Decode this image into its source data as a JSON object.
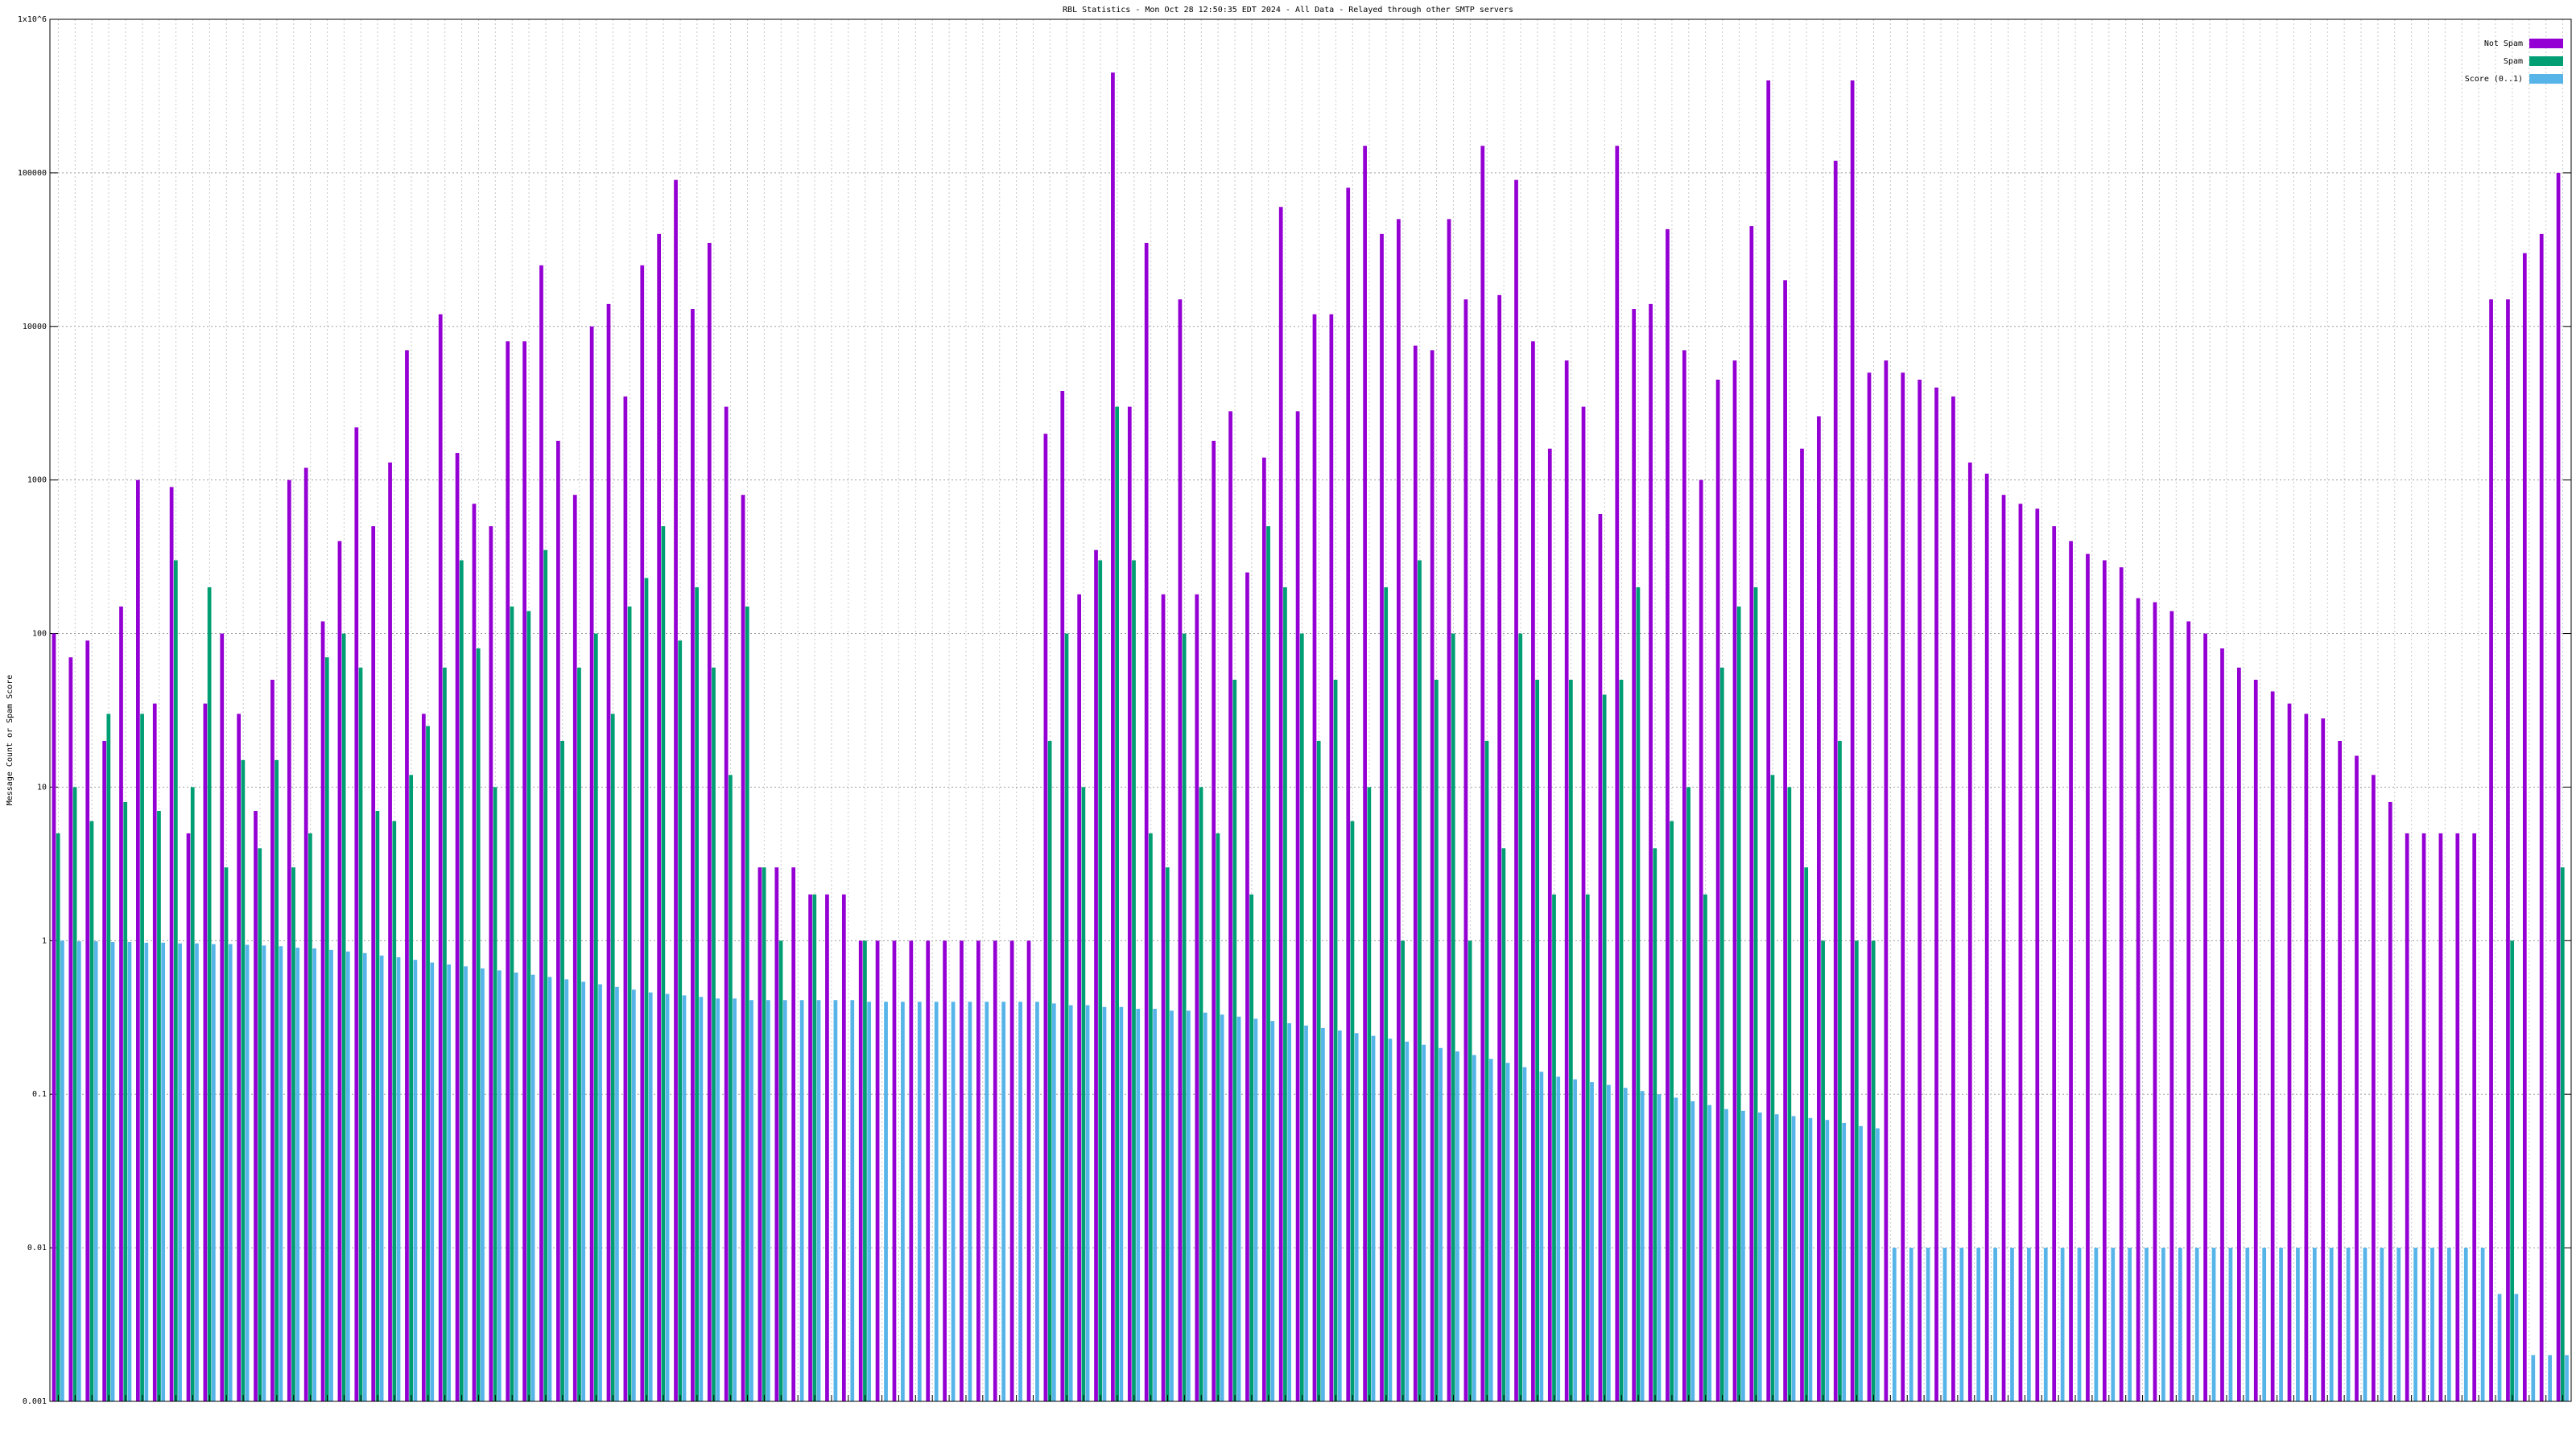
{
  "chart_data": {
    "type": "bar",
    "title": "RBL Statistics - Mon Oct 28 12:50:35 EDT 2024 - All Data - Relayed through other SMTP servers",
    "y_label": "Message Count or Spam Score",
    "log_scale": true,
    "grid": true,
    "legend": "top right",
    "ylim": [
      0.001,
      1000000
    ],
    "yticks": [
      0.001,
      0.01,
      0.1,
      1,
      10,
      100,
      1000,
      10000,
      100000,
      {
        "value": 1000000,
        "label": "1x10^6"
      }
    ],
    "categories": [
      null,
      null,
      null,
      null,
      null,
      null,
      null,
      null,
      null,
      null,
      null,
      null,
      null,
      null,
      null,
      null,
      null,
      null,
      null,
      null,
      null,
      null,
      null,
      null,
      null,
      null,
      null,
      null,
      null,
      null,
      null,
      null,
      null,
      null,
      null,
      null,
      null,
      null,
      null,
      null,
      null,
      null,
      null,
      null,
      null,
      null,
      null,
      null,
      null,
      null,
      null,
      null,
      null,
      null,
      null,
      null,
      null,
      null,
      null,
      null,
      null,
      null,
      null,
      null,
      null,
      null,
      null,
      null,
      null,
      null,
      null,
      null,
      null,
      null,
      null,
      null,
      null,
      null,
      null,
      null,
      null,
      null,
      null,
      null,
      null,
      null,
      null,
      null,
      null,
      null,
      null,
      null,
      null,
      null,
      null,
      null,
      null,
      null,
      null,
      null,
      null,
      null,
      null,
      null,
      null,
      null,
      null,
      null,
      null,
      null,
      null,
      null,
      null,
      null,
      null,
      null,
      null,
      null,
      null,
      null,
      null,
      null,
      null,
      null,
      null,
      null,
      null,
      null,
      null,
      null,
      null,
      null,
      null,
      null,
      null,
      null,
      null,
      null,
      null,
      null,
      null,
      null,
      null,
      null,
      null,
      null,
      null,
      null,
      null,
      null
    ],
    "series": [
      {
        "name": "Not Spam",
        "color": "#9400d3",
        "values": [
          100,
          70,
          90,
          20,
          150,
          1000,
          35,
          900,
          5,
          35,
          100,
          30,
          7,
          50,
          1000,
          1200,
          120,
          400,
          2200,
          500,
          1300,
          7000,
          30,
          12000,
          1500,
          700,
          500,
          8000,
          8000,
          25000,
          1800,
          800,
          10000,
          14000,
          3500,
          25000,
          40000,
          90000,
          13000,
          35000,
          3000,
          800,
          3,
          3,
          3,
          2,
          2,
          2,
          1,
          1,
          1,
          1,
          1,
          1,
          1,
          1,
          1,
          1,
          1,
          2000,
          3800,
          180,
          350,
          450000,
          3000,
          35000,
          180,
          15000,
          180,
          1800,
          2800,
          250,
          1400,
          60000,
          2800,
          12000,
          12000,
          80000,
          150000,
          40000,
          50000,
          7500,
          7000,
          50000,
          15000,
          150000,
          16000,
          90000,
          8000,
          1600,
          6000,
          3000,
          600,
          150000,
          13000,
          14000,
          43000,
          7000,
          1000,
          4500,
          6000,
          45000,
          400000,
          20000,
          1600,
          2600,
          120000,
          400000,
          5000,
          6000,
          5000,
          4500,
          4000,
          3500,
          1300,
          1100,
          800,
          700,
          650,
          500,
          400,
          330,
          300,
          270,
          170,
          160,
          140,
          120,
          100,
          80,
          60,
          50,
          42,
          35,
          30,
          28,
          20,
          16,
          12,
          8,
          5,
          5,
          5,
          5,
          5,
          15000,
          15000,
          30000,
          40000,
          100000
        ]
      },
      {
        "name": "Spam",
        "color": "#009e73",
        "values": [
          5,
          10,
          6,
          30,
          8,
          30,
          7,
          300,
          10,
          200,
          3,
          15,
          4,
          15,
          3,
          5,
          70,
          100,
          60,
          7,
          6,
          12,
          25,
          60,
          300,
          80,
          10,
          150,
          140,
          350,
          20,
          60,
          100,
          30,
          150,
          230,
          500,
          90,
          200,
          60,
          12,
          150,
          3,
          1,
          null,
          2,
          null,
          null,
          1,
          null,
          null,
          null,
          null,
          null,
          null,
          null,
          null,
          null,
          null,
          20,
          100,
          10,
          300,
          3000,
          300,
          5,
          3,
          100,
          10,
          5,
          50,
          2,
          500,
          200,
          100,
          20,
          50,
          6,
          10,
          200,
          1,
          300,
          50,
          100,
          1,
          20,
          4,
          100,
          50,
          2,
          50,
          2,
          40,
          50,
          200,
          4,
          6,
          10,
          2,
          60,
          150,
          200,
          12,
          10,
          3,
          1,
          20,
          1,
          1,
          null,
          null,
          null,
          null,
          null,
          null,
          null,
          null,
          null,
          null,
          null,
          null,
          null,
          null,
          null,
          null,
          null,
          null,
          null,
          null,
          null,
          null,
          null,
          null,
          null,
          null,
          null,
          null,
          null,
          null,
          null,
          null,
          null,
          null,
          null,
          null,
          null,
          1,
          null,
          null,
          3
        ]
      },
      {
        "name": "Score (0..1)",
        "color": "#56b4e9",
        "values": [
          1,
          0.99,
          0.99,
          0.98,
          0.98,
          0.97,
          0.97,
          0.96,
          0.96,
          0.95,
          0.95,
          0.94,
          0.93,
          0.92,
          0.9,
          0.89,
          0.87,
          0.85,
          0.83,
          0.8,
          0.78,
          0.75,
          0.72,
          0.7,
          0.68,
          0.66,
          0.64,
          0.62,
          0.6,
          0.58,
          0.56,
          0.54,
          0.52,
          0.5,
          0.48,
          0.46,
          0.45,
          0.44,
          0.43,
          0.42,
          0.42,
          0.41,
          0.41,
          0.41,
          0.41,
          0.41,
          0.41,
          0.41,
          0.4,
          0.4,
          0.4,
          0.4,
          0.4,
          0.4,
          0.4,
          0.4,
          0.4,
          0.4,
          0.4,
          0.39,
          0.38,
          0.38,
          0.37,
          0.37,
          0.36,
          0.36,
          0.35,
          0.35,
          0.34,
          0.33,
          0.32,
          0.31,
          0.3,
          0.29,
          0.28,
          0.27,
          0.26,
          0.25,
          0.24,
          0.23,
          0.22,
          0.21,
          0.2,
          0.19,
          0.18,
          0.17,
          0.16,
          0.15,
          0.14,
          0.13,
          0.125,
          0.12,
          0.115,
          0.11,
          0.105,
          0.1,
          0.095,
          0.09,
          0.085,
          0.08,
          0.078,
          0.076,
          0.074,
          0.072,
          0.07,
          0.068,
          0.065,
          0.062,
          0.06,
          0.01,
          0.01,
          0.01,
          0.01,
          0.01,
          0.01,
          0.01,
          0.01,
          0.01,
          0.01,
          0.01,
          0.01,
          0.01,
          0.01,
          0.01,
          0.01,
          0.01,
          0.01,
          0.01,
          0.01,
          0.01,
          0.01,
          0.01,
          0.01,
          0.01,
          0.01,
          0.01,
          0.01,
          0.01,
          0.01,
          0.01,
          0.01,
          0.01,
          0.01,
          0.01,
          0.01,
          0.005,
          0.005,
          0.002,
          0.002,
          0.002
        ]
      }
    ]
  }
}
